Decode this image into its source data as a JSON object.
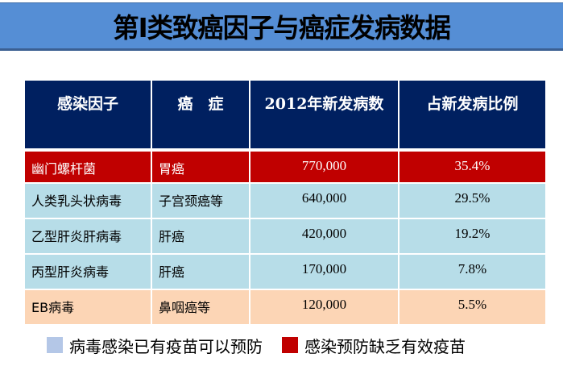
{
  "title": "第I类致癌因子与癌症发病数据",
  "colors": {
    "title_band": "#558ed5",
    "header_bg": "#002060",
    "red_row": "#c00000",
    "blue_row": "#b7dde8",
    "peach_row": "#fcd5b5",
    "legend_vaccine": "#b4c7e7",
    "legend_no_vaccine": "#c00000"
  },
  "table": {
    "headers": [
      "感染因子",
      "癌　症",
      "2012年新发病数",
      "占新发病比例"
    ],
    "rows": [
      {
        "agent": "幽门螺杆菌",
        "cancer": "胃癌",
        "cases": "770,000",
        "share": "35.4%",
        "style": "red"
      },
      {
        "agent": "人类乳头状病毒",
        "cancer": "子宫颈癌等",
        "cases": "640,000",
        "share": "29.5%",
        "style": "blue"
      },
      {
        "agent": "乙型肝炎肝病毒",
        "cancer": "肝癌",
        "cases": "420,000",
        "share": "19.2%",
        "style": "blue"
      },
      {
        "agent": "丙型肝炎病毒",
        "cancer": "肝癌",
        "cases": "170,000",
        "share": "7.8%",
        "style": "blue"
      },
      {
        "agent": "EB病毒",
        "cancer": "鼻咽癌等",
        "cases": "120,000",
        "share": "5.5%",
        "style": "peach"
      }
    ]
  },
  "legend": [
    {
      "label": "病毒感染已有疫苗可以预防",
      "color": "#b4c7e7"
    },
    {
      "label": "感染预防缺乏有效疫苗",
      "color": "#c00000"
    }
  ]
}
